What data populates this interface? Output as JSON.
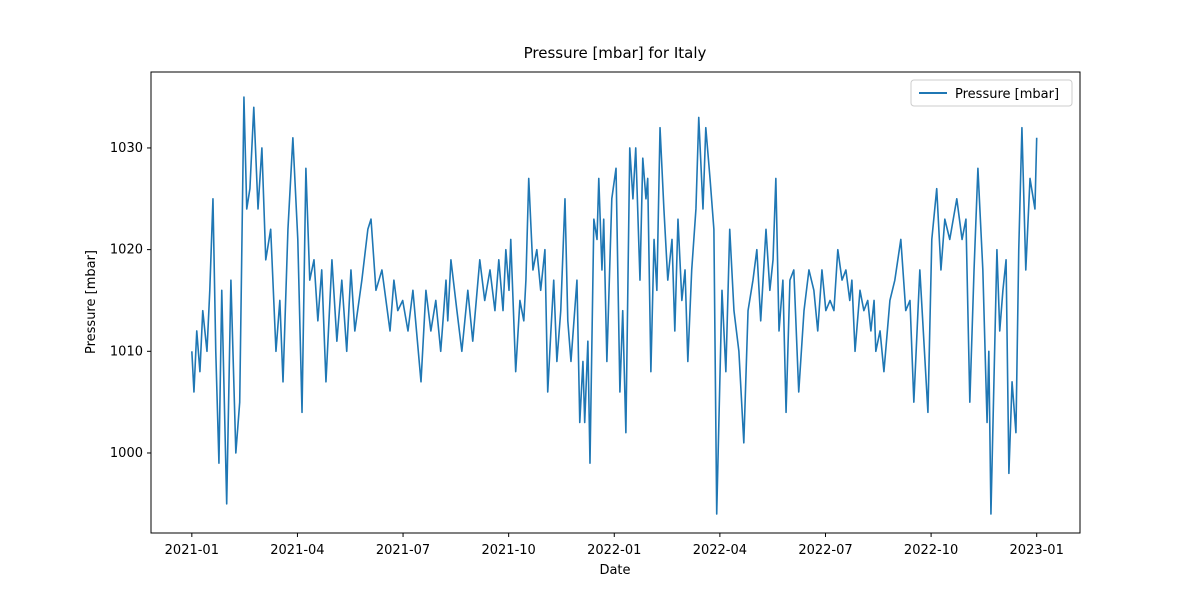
{
  "chart_data": {
    "type": "line",
    "title": "Pressure [mbar] for Italy",
    "xlabel": "Date",
    "ylabel": "Pressure [mbar]",
    "legend": "upper right",
    "x": [
      0,
      0.06,
      0.14,
      0.23,
      0.31,
      0.43,
      0.51,
      0.6,
      0.68,
      0.77,
      0.85,
      0.99,
      1.11,
      1.25,
      1.36,
      1.42,
      1.48,
      1.56,
      1.65,
      1.76,
      1.88,
      1.99,
      2.1,
      2.24,
      2.39,
      2.5,
      2.59,
      2.73,
      2.87,
      3.01,
      3.13,
      3.24,
      3.35,
      3.47,
      3.58,
      3.69,
      3.81,
      3.98,
      4.12,
      4.26,
      4.4,
      4.52,
      4.63,
      4.83,
      5,
      5.09,
      5.23,
      5.4,
      5.63,
      5.74,
      5.85,
      5.99,
      6.14,
      6.28,
      6.51,
      6.65,
      6.79,
      6.93,
      7.07,
      7.22,
      7.27,
      7.36,
      7.53,
      7.67,
      7.84,
      7.98,
      8.18,
      8.32,
      8.47,
      8.61,
      8.72,
      8.84,
      8.92,
      9.01,
      9.06,
      9.2,
      9.32,
      9.43,
      9.49,
      9.57,
      9.69,
      9.8,
      9.91,
      10.03,
      10.11,
      10.2,
      10.28,
      10.37,
      10.48,
      10.6,
      10.68,
      10.77,
      10.94,
      11.02,
      11.11,
      11.16,
      11.25,
      11.31,
      11.42,
      11.51,
      11.56,
      11.65,
      11.7,
      11.79,
      11.93,
      12.05,
      12.16,
      12.24,
      12.33,
      12.44,
      12.53,
      12.61,
      12.73,
      12.81,
      12.9,
      12.95,
      13.04,
      13.13,
      13.21,
      13.3,
      13.41,
      13.52,
      13.64,
      13.72,
      13.81,
      13.92,
      14.01,
      14.09,
      14.2,
      14.32,
      14.4,
      14.52,
      14.6,
      14.72,
      14.83,
      14.91,
      15.06,
      15.17,
      15.28,
      15.4,
      15.54,
      15.68,
      15.8,
      15.94,
      16.05,
      16.16,
      16.31,
      16.42,
      16.51,
      16.59,
      16.68,
      16.79,
      16.88,
      16.99,
      17.1,
      17.24,
      17.39,
      17.53,
      17.67,
      17.78,
      17.9,
      18.01,
      18.13,
      18.24,
      18.35,
      18.47,
      18.58,
      18.69,
      18.75,
      18.84,
      18.98,
      19.09,
      19.2,
      19.29,
      19.38,
      19.43,
      19.55,
      19.66,
      19.83,
      19.97,
      20.14,
      20.28,
      20.4,
      20.51,
      20.68,
      20.91,
      21.02,
      21.16,
      21.28,
      21.39,
      21.53,
      21.73,
      21.88,
      21.99,
      22.1,
      22.22,
      22.33,
      22.47,
      22.59,
      22.64,
      22.7,
      22.87,
      22.95,
      23.04,
      23.13,
      23.21,
      23.3,
      23.41,
      23.49,
      23.58,
      23.69,
      23.81,
      23.95,
      24
    ],
    "series": [
      {
        "name": "Pressure [mbar]",
        "color": "#1f77b4",
        "values": [
          1010,
          1006,
          1012,
          1008,
          1014,
          1010,
          1016,
          1025,
          1010,
          999,
          1016,
          995,
          1017,
          1000,
          1005,
          1020,
          1035,
          1024,
          1026,
          1034,
          1024,
          1030,
          1019,
          1022,
          1010,
          1015,
          1007,
          1022,
          1031,
          1021,
          1004,
          1028,
          1017,
          1019,
          1013,
          1018,
          1007,
          1019,
          1011,
          1017,
          1010,
          1018,
          1012,
          1017,
          1022,
          1023,
          1016,
          1018,
          1012,
          1017,
          1014,
          1015,
          1012,
          1016,
          1007,
          1016,
          1012,
          1015,
          1010,
          1017,
          1013,
          1019,
          1014,
          1010,
          1016,
          1011,
          1019,
          1015,
          1018,
          1014,
          1019,
          1014,
          1020,
          1016,
          1021,
          1008,
          1015,
          1013,
          1017,
          1027,
          1018,
          1020,
          1016,
          1020,
          1006,
          1012,
          1017,
          1009,
          1014,
          1025,
          1013,
          1009,
          1017,
          1003,
          1009,
          1003,
          1011,
          999,
          1023,
          1021,
          1027,
          1018,
          1023,
          1009,
          1025,
          1028,
          1006,
          1014,
          1002,
          1030,
          1025,
          1030,
          1017,
          1029,
          1025,
          1027,
          1008,
          1021,
          1016,
          1032,
          1024,
          1017,
          1021,
          1012,
          1023,
          1015,
          1018,
          1009,
          1018,
          1024,
          1033,
          1024,
          1032,
          1027,
          1022,
          994,
          1016,
          1008,
          1022,
          1014,
          1010,
          1001,
          1014,
          1017,
          1020,
          1013,
          1022,
          1016,
          1019,
          1027,
          1012,
          1017,
          1004,
          1017,
          1018,
          1006,
          1014,
          1018,
          1016,
          1012,
          1018,
          1014,
          1015,
          1014,
          1020,
          1017,
          1018,
          1015,
          1017,
          1010,
          1016,
          1014,
          1015,
          1012,
          1015,
          1010,
          1012,
          1008,
          1015,
          1017,
          1021,
          1014,
          1015,
          1005,
          1018,
          1004,
          1021,
          1026,
          1018,
          1023,
          1021,
          1025,
          1021,
          1023,
          1005,
          1018,
          1028,
          1018,
          1003,
          1010,
          994,
          1020,
          1012,
          1016,
          1019,
          998,
          1007,
          1002,
          1020,
          1032,
          1018,
          1027,
          1024,
          1031
        ]
      }
    ],
    "xlim": [
      -1.16,
      25.23
    ],
    "xticks": [
      {
        "value": 0,
        "label": "2021-01"
      },
      {
        "value": 3,
        "label": "2021-04"
      },
      {
        "value": 6,
        "label": "2021-07"
      },
      {
        "value": 9,
        "label": "2021-10"
      },
      {
        "value": 12,
        "label": "2022-01"
      },
      {
        "value": 15,
        "label": "2022-04"
      },
      {
        "value": 18,
        "label": "2022-07"
      },
      {
        "value": 21,
        "label": "2022-10"
      },
      {
        "value": 24,
        "label": "2023-01"
      }
    ],
    "ylim": [
      992.13,
      1037.47
    ],
    "yticks": [
      1000,
      1010,
      1020,
      1030
    ]
  }
}
